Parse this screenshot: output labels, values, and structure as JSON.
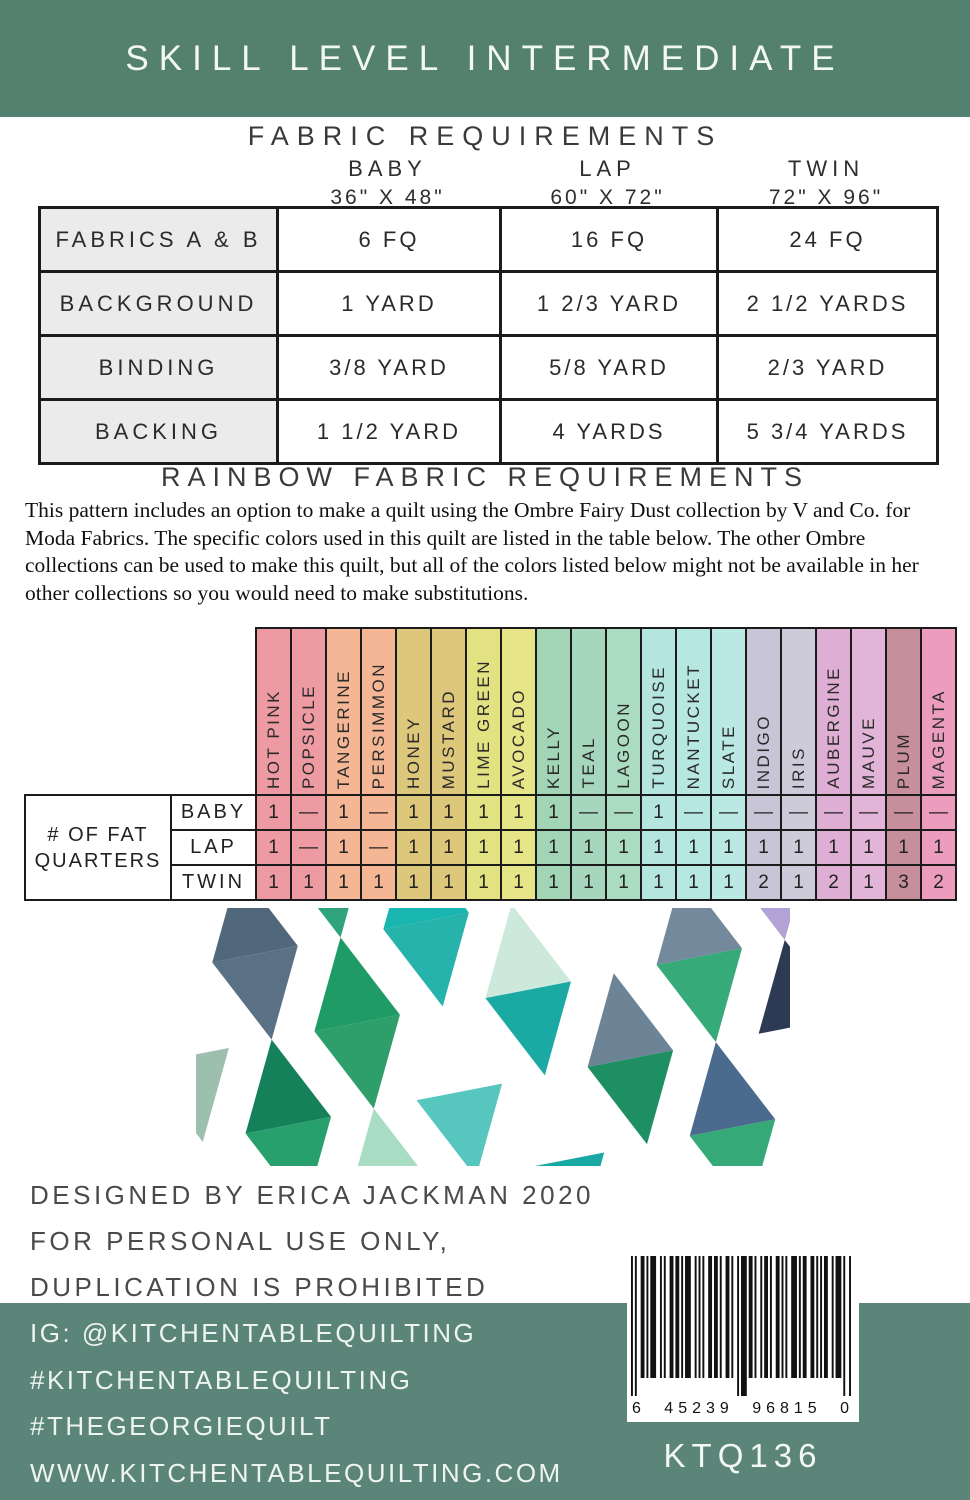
{
  "banner": {
    "title": "SKILL LEVEL INTERMEDIATE",
    "color": "#53806f"
  },
  "fabric_requirements": {
    "title": "FABRIC REQUIREMENTS",
    "sizes": [
      {
        "name": "BABY",
        "dims": "36\" X 48\""
      },
      {
        "name": "LAP",
        "dims": "60\" X 72\""
      },
      {
        "name": "TWIN",
        "dims": "72\" X 96\""
      }
    ],
    "rows": [
      {
        "label": "FABRICS A & B",
        "values": [
          "6 FQ",
          "16 FQ",
          "24 FQ"
        ]
      },
      {
        "label": "BACKGROUND",
        "values": [
          "1 YARD",
          "1 2/3 YARD",
          "2 1/2 YARDS"
        ]
      },
      {
        "label": "BINDING",
        "values": [
          "3/8 YARD",
          "5/8 YARD",
          "2/3 YARD"
        ]
      },
      {
        "label": "BACKING",
        "values": [
          "1 1/2 YARD",
          "4 YARDS",
          "5 3/4 YARDS"
        ]
      }
    ]
  },
  "rainbow": {
    "title": "RAINBOW FABRIC REQUIREMENTS",
    "paragraph": "This pattern includes an option to make a quilt using the Ombre Fairy Dust collection by V and Co. for Moda Fabrics. The specific colors used in this quilt are listed in the table below. The other Ombre collections can be used to make this quilt, but all of the colors listed below might not be available in her other collections so you would need to make substitutions.",
    "row_group_label": "# OF FAT QUARTERS",
    "columns": [
      {
        "name": "HOT PINK",
        "color": "#ee9aa3"
      },
      {
        "name": "POPSICLE",
        "color": "#ee9aa3"
      },
      {
        "name": "TANGERINE",
        "color": "#f4b694"
      },
      {
        "name": "PERSIMMON",
        "color": "#f4b694"
      },
      {
        "name": "HONEY",
        "color": "#dcc77b"
      },
      {
        "name": "MUSTARD",
        "color": "#dcc77b"
      },
      {
        "name": "LIME GREEN",
        "color": "#e2e282"
      },
      {
        "name": "AVOCADO",
        "color": "#e6e688"
      },
      {
        "name": "KELLY",
        "color": "#a2d4b6"
      },
      {
        "name": "TEAL",
        "color": "#a6d7bc"
      },
      {
        "name": "LAGOON",
        "color": "#abdcc2"
      },
      {
        "name": "TURQUOISE",
        "color": "#b4e5de"
      },
      {
        "name": "NANTUCKET",
        "color": "#b7e7e1"
      },
      {
        "name": "SLATE",
        "color": "#bae9e4"
      },
      {
        "name": "INDIGO",
        "color": "#c8c5d6"
      },
      {
        "name": "IRIS",
        "color": "#cdcad9"
      },
      {
        "name": "AUBERGINE",
        "color": "#dfaed4"
      },
      {
        "name": "MAUVE",
        "color": "#e2b5d8"
      },
      {
        "name": "PLUM",
        "color": "#c78f9b"
      },
      {
        "name": "MAGENTA",
        "color": "#ec9dbe"
      }
    ],
    "rows": [
      {
        "label": "BABY",
        "values": [
          "1",
          "—",
          "1",
          "—",
          "1",
          "1",
          "1",
          "1",
          "1",
          "—",
          "—",
          "1",
          "—",
          "—",
          "—",
          "—",
          "—",
          "—",
          "—",
          "—"
        ]
      },
      {
        "label": "LAP",
        "values": [
          "1",
          "—",
          "1",
          "—",
          "1",
          "1",
          "1",
          "1",
          "1",
          "1",
          "1",
          "1",
          "1",
          "1",
          "1",
          "1",
          "1",
          "1",
          "1",
          "1"
        ]
      },
      {
        "label": "TWIN",
        "values": [
          "1",
          "1",
          "1",
          "1",
          "1",
          "1",
          "1",
          "1",
          "1",
          "1",
          "1",
          "1",
          "1",
          "1",
          "2",
          "1",
          "2",
          "1",
          "3",
          "2"
        ]
      }
    ]
  },
  "quilt_photo": {
    "background": "#ffffff",
    "grid": [
      [
        "#3fae85",
        "#bfe3d2",
        "#51677b",
        "#2fa379",
        "#19b6b0",
        null,
        "#7e93a4",
        "#94a9b9",
        "#9a84c3",
        "#6e5a9d"
      ],
      [
        "#2aa173",
        null,
        "#5a7084",
        "#1f9b66",
        "#25b3ab",
        "#cde9db",
        null,
        "#74899c",
        "#b2a2d5",
        "#3a4260"
      ],
      [
        null,
        "#9dbfae",
        "#15815a",
        "#2e9e6b",
        null,
        "#1ba9a3",
        "#6c8496",
        "#36aa79",
        "#2e3a54",
        null
      ],
      [
        "#c8a838",
        null,
        "#28a06e",
        "#a8dcc3",
        "#56c6bf",
        null,
        "#1d8f62",
        "#4a6a8e",
        null,
        "#7e93a6"
      ],
      [
        "#e9953f",
        "#8f8c2e",
        "#c9c94b",
        null,
        "#27a06d",
        "#18a9a5",
        null,
        "#35aa78",
        "#4a6a8e",
        "#2e3a54"
      ]
    ]
  },
  "credits": {
    "lines": [
      "DESIGNED BY ERICA JACKMAN 2020",
      "FOR PERSONAL USE ONLY,",
      "DUPLICATION IS PROHIBITED"
    ]
  },
  "footer": {
    "color": "#5b8578",
    "lines": [
      "IG: @KITCHENTABLEQUILTING",
      "#KITCHENTABLEQUILTING",
      "#THEGEORGIEQUILT",
      "WWW.KITCHENTABLEQUILTING.COM"
    ],
    "barcode_digits": [
      "6",
      "45239",
      "96815",
      "0"
    ],
    "sku": "KTQ136"
  }
}
